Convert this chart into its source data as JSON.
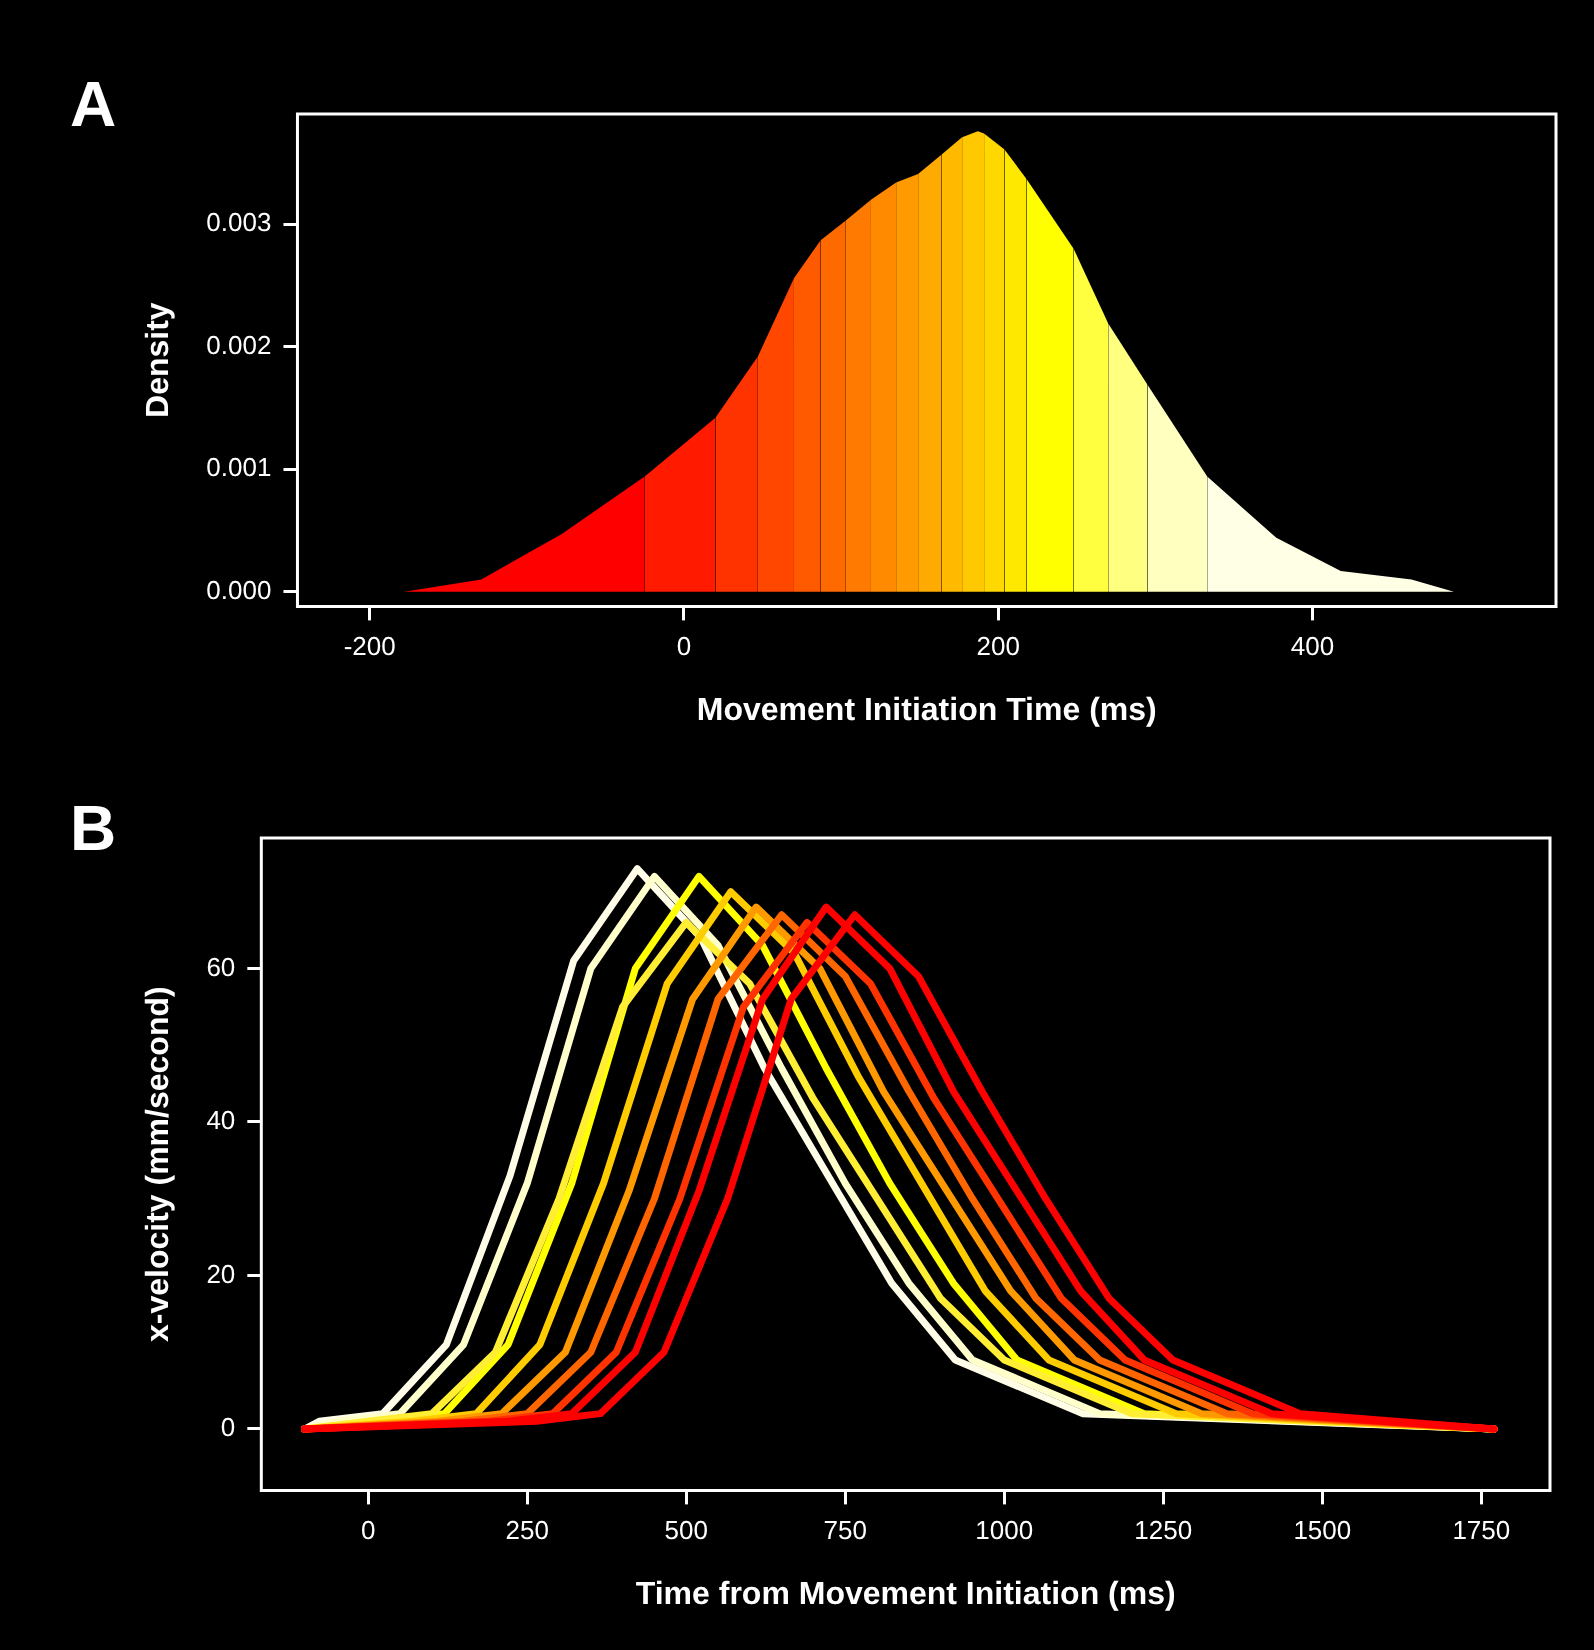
{
  "chart_data": [
    {
      "type": "area",
      "title": "A",
      "xlabel": "Movement Initiation Time (ms)",
      "ylabel": "Density",
      "xlim": [
        -246,
        555
      ],
      "xticks": [
        -200,
        0,
        200,
        400
      ],
      "ylim": [
        -0.00012,
        0.0039
      ],
      "yticks": [
        {
          "value": 0,
          "label": "0.000"
        },
        0.001,
        0.002,
        0.003
      ],
      "series": [
        {
          "color": "#ff0000",
          "x": [
            -178,
            -129,
            -78,
            -25
          ],
          "values": [
            0,
            0.0001,
            0.00047,
            0.00094
          ]
        },
        {
          "color": "#ff1a00",
          "x": [
            -25,
            20
          ],
          "values": [
            0.00094,
            0.00142
          ]
        },
        {
          "color": "#ff3300",
          "x": [
            20,
            47
          ],
          "values": [
            0.00142,
            0.00192
          ]
        },
        {
          "color": "#ff4700",
          "x": [
            47,
            70
          ],
          "values": [
            0.00192,
            0.00256
          ]
        },
        {
          "color": "#ff5a00",
          "x": [
            70,
            87
          ],
          "values": [
            0.00256,
            0.00287
          ]
        },
        {
          "color": "#ff6a00",
          "x": [
            87,
            103
          ],
          "values": [
            0.00287,
            0.00303
          ]
        },
        {
          "color": "#ff7a00",
          "x": [
            103,
            119
          ],
          "values": [
            0.00303,
            0.0032
          ]
        },
        {
          "color": "#ff8a00",
          "x": [
            119,
            135
          ],
          "values": [
            0.0032,
            0.00334
          ]
        },
        {
          "color": "#ff9a00",
          "x": [
            135,
            149
          ],
          "values": [
            0.00334,
            0.00341
          ]
        },
        {
          "color": "#ffaa00",
          "x": [
            149,
            164
          ],
          "values": [
            0.00341,
            0.00357
          ]
        },
        {
          "color": "#ffba00",
          "x": [
            164,
            177
          ],
          "values": [
            0.00357,
            0.00371
          ]
        },
        {
          "color": "#ffc800",
          "x": [
            177,
            187,
            191
          ],
          "values": [
            0.00371,
            0.00376,
            0.00374
          ]
        },
        {
          "color": "#ffd800",
          "x": [
            191,
            204
          ],
          "values": [
            0.00374,
            0.00361
          ]
        },
        {
          "color": "#ffe800",
          "x": [
            204,
            218
          ],
          "values": [
            0.00361,
            0.00337
          ]
        },
        {
          "color": "#ffff00",
          "x": [
            218,
            248
          ],
          "values": [
            0.00337,
            0.0028
          ]
        },
        {
          "color": "#ffff40",
          "x": [
            248,
            270
          ],
          "values": [
            0.0028,
            0.00219
          ]
        },
        {
          "color": "#ffff80",
          "x": [
            270,
            295
          ],
          "values": [
            0.00219,
            0.00169
          ]
        },
        {
          "color": "#ffffc0",
          "x": [
            295,
            333
          ],
          "values": [
            0.00169,
            0.00094
          ]
        },
        {
          "color": "#ffffe6",
          "x": [
            333,
            377,
            418,
            463,
            490
          ],
          "values": [
            0.00094,
            0.00044,
            0.00017,
            0.0001,
            0
          ]
        }
      ]
    },
    {
      "type": "line",
      "title": "B",
      "xlabel": "Time from Movement Initiation (ms)",
      "ylabel": "x-velocity (mm/second)",
      "xlim": [
        -168,
        1858
      ],
      "xticks": [
        0,
        250,
        500,
        750,
        1000,
        1250,
        1500,
        1750
      ],
      "ylim": [
        -8,
        77
      ],
      "yticks": [
        0,
        20,
        40,
        60
      ],
      "series": [
        {
          "color": "#ff0000",
          "x": [
            -100,
            265,
            365,
            465,
            565,
            665,
            765,
            865,
            965,
            1065,
            1165,
            1265,
            1465,
            1770
          ],
          "values": [
            0,
            1,
            2,
            10,
            30,
            56,
            67,
            59,
            44,
            30,
            17,
            9,
            2,
            0
          ]
        },
        {
          "color": "#ff0000",
          "x": [
            -100,
            220,
            320,
            420,
            520,
            620,
            720,
            820,
            920,
            1020,
            1120,
            1220,
            1420,
            1770
          ],
          "values": [
            0,
            1,
            2,
            10,
            31,
            56,
            68,
            60,
            44,
            31,
            18,
            9,
            2,
            0
          ]
        },
        {
          "color": "#ff3300",
          "x": [
            -100,
            190,
            290,
            390,
            490,
            590,
            690,
            790,
            890,
            990,
            1090,
            1190,
            1390,
            1770
          ],
          "values": [
            0,
            1,
            2,
            10,
            30,
            55,
            66,
            58,
            43,
            30,
            17,
            9,
            2,
            0
          ]
        },
        {
          "color": "#ff6600",
          "x": [
            -100,
            150,
            250,
            350,
            450,
            550,
            650,
            750,
            850,
            950,
            1050,
            1150,
            1350,
            1770
          ],
          "values": [
            0,
            1,
            2,
            10,
            30,
            56,
            67,
            59,
            44,
            30,
            17,
            9,
            2,
            0
          ]
        },
        {
          "color": "#ff9900",
          "x": [
            -100,
            110,
            210,
            310,
            410,
            510,
            610,
            710,
            810,
            910,
            1010,
            1110,
            1310,
            1770
          ],
          "values": [
            0,
            1,
            2,
            10,
            31,
            56,
            68,
            60,
            44,
            31,
            18,
            9,
            2,
            0
          ]
        },
        {
          "color": "#ffcc00",
          "x": [
            -100,
            70,
            170,
            270,
            370,
            470,
            570,
            670,
            770,
            870,
            970,
            1070,
            1270,
            1770
          ],
          "values": [
            0,
            1,
            2,
            11,
            32,
            58,
            70,
            62,
            46,
            32,
            18,
            9,
            2,
            0
          ]
        },
        {
          "color": "#ffee33",
          "x": [
            -100,
            0,
            100,
            200,
            300,
            400,
            500,
            600,
            700,
            800,
            900,
            1000,
            1200,
            1770
          ],
          "values": [
            0,
            1,
            2,
            10,
            30,
            55,
            66,
            58,
            43,
            30,
            17,
            9,
            2,
            0
          ]
        },
        {
          "color": "#ffff00",
          "x": [
            -100,
            20,
            120,
            220,
            320,
            420,
            520,
            620,
            720,
            820,
            920,
            1020,
            1220,
            1770
          ],
          "values": [
            0,
            1,
            2,
            11,
            32,
            60,
            72,
            63,
            47,
            32,
            19,
            9,
            2,
            0
          ]
        },
        {
          "color": "#ffffcc",
          "x": [
            -100,
            -50,
            50,
            150,
            250,
            350,
            450,
            550,
            650,
            750,
            850,
            950,
            1150,
            1770
          ],
          "values": [
            0,
            1,
            2,
            11,
            32,
            60,
            72,
            63,
            47,
            32,
            19,
            9,
            2,
            0
          ]
        },
        {
          "color": "#fffde8",
          "x": [
            -100,
            -77,
            23,
            123,
            223,
            323,
            423,
            523,
            623,
            723,
            823,
            923,
            1123,
            1770
          ],
          "values": [
            0,
            1,
            2,
            11,
            33,
            61,
            73,
            64,
            47,
            33,
            19,
            9,
            2,
            0
          ]
        }
      ]
    }
  ]
}
